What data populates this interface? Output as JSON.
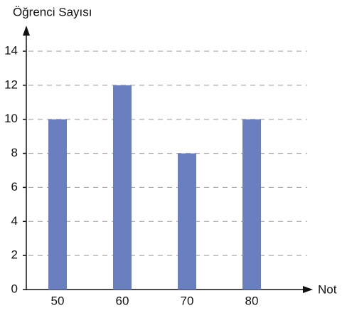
{
  "chart_data": {
    "type": "bar",
    "y_label": "Öğrenci Sayısı",
    "x_label": "Not",
    "categories": [
      "50",
      "60",
      "70",
      "80"
    ],
    "values": [
      10,
      12,
      8,
      10
    ],
    "color": "#6a7fbf",
    "ylim": [
      0,
      14
    ],
    "yticks": [
      0,
      2,
      4,
      6,
      8,
      10,
      12,
      14
    ],
    "grid": true
  }
}
